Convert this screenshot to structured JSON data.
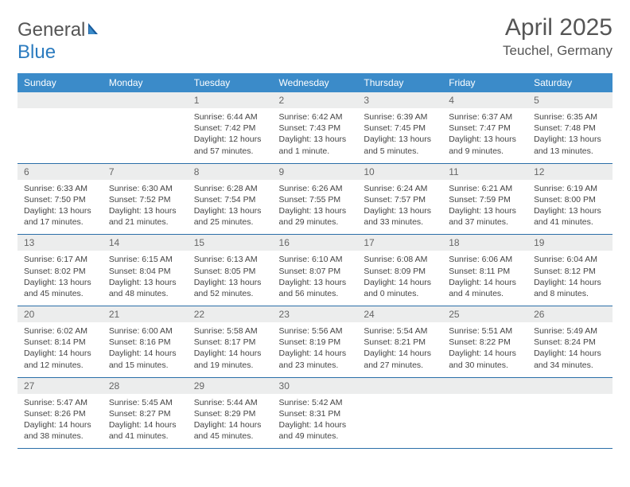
{
  "logo": {
    "general": "General",
    "blue": "Blue"
  },
  "title": "April 2025",
  "location": "Teuchel, Germany",
  "colors": {
    "header_bg": "#3b8bc9",
    "header_text": "#ffffff",
    "daynum_bg": "#eceded",
    "border": "#2b6fa8",
    "logo_blue": "#2b7bbf"
  },
  "weekdays": [
    "Sunday",
    "Monday",
    "Tuesday",
    "Wednesday",
    "Thursday",
    "Friday",
    "Saturday"
  ],
  "weeks": [
    [
      null,
      null,
      {
        "n": "1",
        "sr": "6:44 AM",
        "ss": "7:42 PM",
        "dl": "12 hours and 57 minutes."
      },
      {
        "n": "2",
        "sr": "6:42 AM",
        "ss": "7:43 PM",
        "dl": "13 hours and 1 minute."
      },
      {
        "n": "3",
        "sr": "6:39 AM",
        "ss": "7:45 PM",
        "dl": "13 hours and 5 minutes."
      },
      {
        "n": "4",
        "sr": "6:37 AM",
        "ss": "7:47 PM",
        "dl": "13 hours and 9 minutes."
      },
      {
        "n": "5",
        "sr": "6:35 AM",
        "ss": "7:48 PM",
        "dl": "13 hours and 13 minutes."
      }
    ],
    [
      {
        "n": "6",
        "sr": "6:33 AM",
        "ss": "7:50 PM",
        "dl": "13 hours and 17 minutes."
      },
      {
        "n": "7",
        "sr": "6:30 AM",
        "ss": "7:52 PM",
        "dl": "13 hours and 21 minutes."
      },
      {
        "n": "8",
        "sr": "6:28 AM",
        "ss": "7:54 PM",
        "dl": "13 hours and 25 minutes."
      },
      {
        "n": "9",
        "sr": "6:26 AM",
        "ss": "7:55 PM",
        "dl": "13 hours and 29 minutes."
      },
      {
        "n": "10",
        "sr": "6:24 AM",
        "ss": "7:57 PM",
        "dl": "13 hours and 33 minutes."
      },
      {
        "n": "11",
        "sr": "6:21 AM",
        "ss": "7:59 PM",
        "dl": "13 hours and 37 minutes."
      },
      {
        "n": "12",
        "sr": "6:19 AM",
        "ss": "8:00 PM",
        "dl": "13 hours and 41 minutes."
      }
    ],
    [
      {
        "n": "13",
        "sr": "6:17 AM",
        "ss": "8:02 PM",
        "dl": "13 hours and 45 minutes."
      },
      {
        "n": "14",
        "sr": "6:15 AM",
        "ss": "8:04 PM",
        "dl": "13 hours and 48 minutes."
      },
      {
        "n": "15",
        "sr": "6:13 AM",
        "ss": "8:05 PM",
        "dl": "13 hours and 52 minutes."
      },
      {
        "n": "16",
        "sr": "6:10 AM",
        "ss": "8:07 PM",
        "dl": "13 hours and 56 minutes."
      },
      {
        "n": "17",
        "sr": "6:08 AM",
        "ss": "8:09 PM",
        "dl": "14 hours and 0 minutes."
      },
      {
        "n": "18",
        "sr": "6:06 AM",
        "ss": "8:11 PM",
        "dl": "14 hours and 4 minutes."
      },
      {
        "n": "19",
        "sr": "6:04 AM",
        "ss": "8:12 PM",
        "dl": "14 hours and 8 minutes."
      }
    ],
    [
      {
        "n": "20",
        "sr": "6:02 AM",
        "ss": "8:14 PM",
        "dl": "14 hours and 12 minutes."
      },
      {
        "n": "21",
        "sr": "6:00 AM",
        "ss": "8:16 PM",
        "dl": "14 hours and 15 minutes."
      },
      {
        "n": "22",
        "sr": "5:58 AM",
        "ss": "8:17 PM",
        "dl": "14 hours and 19 minutes."
      },
      {
        "n": "23",
        "sr": "5:56 AM",
        "ss": "8:19 PM",
        "dl": "14 hours and 23 minutes."
      },
      {
        "n": "24",
        "sr": "5:54 AM",
        "ss": "8:21 PM",
        "dl": "14 hours and 27 minutes."
      },
      {
        "n": "25",
        "sr": "5:51 AM",
        "ss": "8:22 PM",
        "dl": "14 hours and 30 minutes."
      },
      {
        "n": "26",
        "sr": "5:49 AM",
        "ss": "8:24 PM",
        "dl": "14 hours and 34 minutes."
      }
    ],
    [
      {
        "n": "27",
        "sr": "5:47 AM",
        "ss": "8:26 PM",
        "dl": "14 hours and 38 minutes."
      },
      {
        "n": "28",
        "sr": "5:45 AM",
        "ss": "8:27 PM",
        "dl": "14 hours and 41 minutes."
      },
      {
        "n": "29",
        "sr": "5:44 AM",
        "ss": "8:29 PM",
        "dl": "14 hours and 45 minutes."
      },
      {
        "n": "30",
        "sr": "5:42 AM",
        "ss": "8:31 PM",
        "dl": "14 hours and 49 minutes."
      },
      null,
      null,
      null
    ]
  ],
  "labels": {
    "sunrise": "Sunrise:",
    "sunset": "Sunset:",
    "daylight": "Daylight:"
  }
}
